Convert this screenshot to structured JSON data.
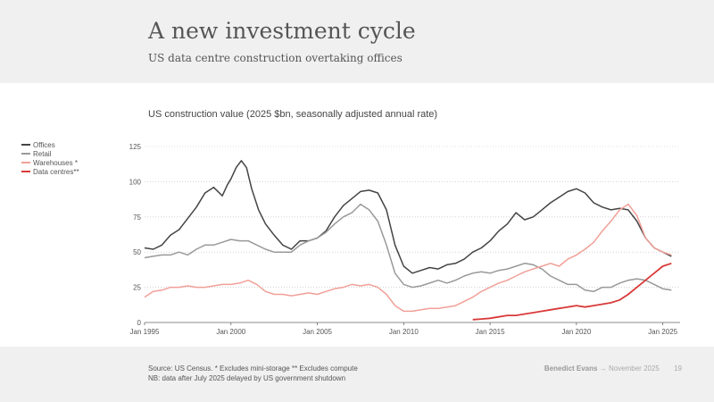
{
  "header": {
    "title": "A new investment cycle",
    "subtitle": "US data centre construction overtaking offices"
  },
  "footer": {
    "source_line1": "Source: US Census. * Excludes mini-storage ** Excludes compute",
    "source_line2": "NB: data after July 2025 delayed by US government shutdown",
    "author": "Benedict Evans",
    "arrow": "→",
    "date": "November 2025",
    "page": "19"
  },
  "colors": {
    "offices": "#444444",
    "retail": "#999999",
    "warehouses": "#f0a098",
    "datacentres": "#d93a3a"
  },
  "chart_data": {
    "type": "line",
    "title": "US construction value (2025 $bn, seasonally adjusted annual rate)",
    "xlabel": "",
    "ylabel": "",
    "xlim": [
      1995,
      2026
    ],
    "ylim": [
      0,
      125
    ],
    "yticks": [
      0,
      25,
      50,
      75,
      100,
      125
    ],
    "xticks": [
      {
        "value": 1995,
        "label": "Jan 1995"
      },
      {
        "value": 2000,
        "label": "Jan 2000"
      },
      {
        "value": 2005,
        "label": "Jan 2005"
      },
      {
        "value": 2010,
        "label": "Jan 2010"
      },
      {
        "value": 2015,
        "label": "Jan 2015"
      },
      {
        "value": 2020,
        "label": "Jan 2020"
      },
      {
        "value": 2025,
        "label": "Jan 2025"
      }
    ],
    "grid": "horizontal-dotted",
    "legend_position": "left",
    "series": [
      {
        "name": "Offices",
        "color_key": "offices",
        "points": [
          [
            1995,
            53
          ],
          [
            1995.5,
            52
          ],
          [
            1996,
            55
          ],
          [
            1996.5,
            62
          ],
          [
            1997,
            66
          ],
          [
            1997.5,
            74
          ],
          [
            1998,
            82
          ],
          [
            1998.5,
            92
          ],
          [
            1999,
            96
          ],
          [
            1999.5,
            90
          ],
          [
            1999.8,
            98
          ],
          [
            2000,
            102
          ],
          [
            2000.3,
            110
          ],
          [
            2000.6,
            115
          ],
          [
            2000.9,
            110
          ],
          [
            2001.2,
            95
          ],
          [
            2001.6,
            80
          ],
          [
            2002,
            70
          ],
          [
            2002.5,
            62
          ],
          [
            2003,
            55
          ],
          [
            2003.5,
            52
          ],
          [
            2004,
            58
          ],
          [
            2004.5,
            58
          ],
          [
            2005,
            60
          ],
          [
            2005.5,
            65
          ],
          [
            2006,
            75
          ],
          [
            2006.5,
            83
          ],
          [
            2007,
            88
          ],
          [
            2007.5,
            93
          ],
          [
            2008,
            94
          ],
          [
            2008.5,
            92
          ],
          [
            2009,
            80
          ],
          [
            2009.5,
            55
          ],
          [
            2010,
            40
          ],
          [
            2010.5,
            35
          ],
          [
            2011,
            37
          ],
          [
            2011.5,
            39
          ],
          [
            2012,
            38
          ],
          [
            2012.5,
            41
          ],
          [
            2013,
            42
          ],
          [
            2013.5,
            45
          ],
          [
            2014,
            50
          ],
          [
            2014.5,
            53
          ],
          [
            2015,
            58
          ],
          [
            2015.5,
            65
          ],
          [
            2016,
            70
          ],
          [
            2016.5,
            78
          ],
          [
            2017,
            73
          ],
          [
            2017.5,
            75
          ],
          [
            2018,
            80
          ],
          [
            2018.5,
            85
          ],
          [
            2019,
            89
          ],
          [
            2019.5,
            93
          ],
          [
            2020,
            95
          ],
          [
            2020.5,
            92
          ],
          [
            2021,
            85
          ],
          [
            2021.5,
            82
          ],
          [
            2022,
            80
          ],
          [
            2022.5,
            81
          ],
          [
            2023,
            80
          ],
          [
            2023.5,
            72
          ],
          [
            2024,
            60
          ],
          [
            2024.5,
            53
          ],
          [
            2025,
            50
          ],
          [
            2025.5,
            47
          ]
        ]
      },
      {
        "name": "Retail",
        "color_key": "retail",
        "points": [
          [
            1995,
            46
          ],
          [
            1995.5,
            47
          ],
          [
            1996,
            48
          ],
          [
            1996.5,
            48
          ],
          [
            1997,
            50
          ],
          [
            1997.5,
            48
          ],
          [
            1998,
            52
          ],
          [
            1998.5,
            55
          ],
          [
            1999,
            55
          ],
          [
            1999.5,
            57
          ],
          [
            2000,
            59
          ],
          [
            2000.5,
            58
          ],
          [
            2001,
            58
          ],
          [
            2001.5,
            55
          ],
          [
            2002,
            52
          ],
          [
            2002.5,
            50
          ],
          [
            2003,
            50
          ],
          [
            2003.5,
            50
          ],
          [
            2004,
            55
          ],
          [
            2004.5,
            58
          ],
          [
            2005,
            60
          ],
          [
            2005.5,
            64
          ],
          [
            2006,
            70
          ],
          [
            2006.5,
            75
          ],
          [
            2007,
            78
          ],
          [
            2007.5,
            84
          ],
          [
            2008,
            80
          ],
          [
            2008.5,
            72
          ],
          [
            2009,
            55
          ],
          [
            2009.5,
            35
          ],
          [
            2010,
            27
          ],
          [
            2010.5,
            25
          ],
          [
            2011,
            26
          ],
          [
            2011.5,
            28
          ],
          [
            2012,
            30
          ],
          [
            2012.5,
            28
          ],
          [
            2013,
            30
          ],
          [
            2013.5,
            33
          ],
          [
            2014,
            35
          ],
          [
            2014.5,
            36
          ],
          [
            2015,
            35
          ],
          [
            2015.5,
            37
          ],
          [
            2016,
            38
          ],
          [
            2016.5,
            40
          ],
          [
            2017,
            42
          ],
          [
            2017.5,
            41
          ],
          [
            2018,
            38
          ],
          [
            2018.5,
            33
          ],
          [
            2019,
            30
          ],
          [
            2019.5,
            27
          ],
          [
            2020,
            27
          ],
          [
            2020.5,
            23
          ],
          [
            2021,
            22
          ],
          [
            2021.5,
            25
          ],
          [
            2022,
            25
          ],
          [
            2022.5,
            28
          ],
          [
            2023,
            30
          ],
          [
            2023.5,
            31
          ],
          [
            2024,
            30
          ],
          [
            2024.5,
            27
          ],
          [
            2025,
            24
          ],
          [
            2025.5,
            23
          ]
        ]
      },
      {
        "name": "Warehouses *",
        "color_key": "warehouses",
        "points": [
          [
            1995,
            18
          ],
          [
            1995.5,
            22
          ],
          [
            1996,
            23
          ],
          [
            1996.5,
            25
          ],
          [
            1997,
            25
          ],
          [
            1997.5,
            26
          ],
          [
            1998,
            25
          ],
          [
            1998.5,
            25
          ],
          [
            1999,
            26
          ],
          [
            1999.5,
            27
          ],
          [
            2000,
            27
          ],
          [
            2000.5,
            28
          ],
          [
            2001,
            30
          ],
          [
            2001.5,
            27
          ],
          [
            2002,
            22
          ],
          [
            2002.5,
            20
          ],
          [
            2003,
            20
          ],
          [
            2003.5,
            19
          ],
          [
            2004,
            20
          ],
          [
            2004.5,
            21
          ],
          [
            2005,
            20
          ],
          [
            2005.5,
            22
          ],
          [
            2006,
            24
          ],
          [
            2006.5,
            25
          ],
          [
            2007,
            27
          ],
          [
            2007.5,
            26
          ],
          [
            2008,
            27
          ],
          [
            2008.5,
            25
          ],
          [
            2009,
            20
          ],
          [
            2009.5,
            12
          ],
          [
            2010,
            8
          ],
          [
            2010.5,
            8
          ],
          [
            2011,
            9
          ],
          [
            2011.5,
            10
          ],
          [
            2012,
            10
          ],
          [
            2012.5,
            11
          ],
          [
            2013,
            12
          ],
          [
            2013.5,
            15
          ],
          [
            2014,
            18
          ],
          [
            2014.5,
            22
          ],
          [
            2015,
            25
          ],
          [
            2015.5,
            28
          ],
          [
            2016,
            30
          ],
          [
            2016.5,
            33
          ],
          [
            2017,
            36
          ],
          [
            2017.5,
            38
          ],
          [
            2018,
            40
          ],
          [
            2018.5,
            42
          ],
          [
            2019,
            40
          ],
          [
            2019.5,
            45
          ],
          [
            2020,
            48
          ],
          [
            2020.5,
            52
          ],
          [
            2021,
            57
          ],
          [
            2021.5,
            65
          ],
          [
            2022,
            72
          ],
          [
            2022.5,
            80
          ],
          [
            2023,
            84
          ],
          [
            2023.5,
            76
          ],
          [
            2024,
            60
          ],
          [
            2024.5,
            53
          ],
          [
            2025,
            50
          ],
          [
            2025.5,
            48
          ]
        ]
      },
      {
        "name": "Data centres**",
        "color_key": "datacentres",
        "points": [
          [
            2014,
            2
          ],
          [
            2014.5,
            2.5
          ],
          [
            2015,
            3
          ],
          [
            2015.5,
            4
          ],
          [
            2016,
            5
          ],
          [
            2016.5,
            5
          ],
          [
            2017,
            6
          ],
          [
            2017.5,
            7
          ],
          [
            2018,
            8
          ],
          [
            2018.5,
            9
          ],
          [
            2019,
            10
          ],
          [
            2019.5,
            11
          ],
          [
            2020,
            12
          ],
          [
            2020.5,
            11
          ],
          [
            2021,
            12
          ],
          [
            2021.5,
            13
          ],
          [
            2022,
            14
          ],
          [
            2022.5,
            16
          ],
          [
            2023,
            20
          ],
          [
            2023.5,
            25
          ],
          [
            2024,
            30
          ],
          [
            2024.5,
            35
          ],
          [
            2025,
            40
          ],
          [
            2025.5,
            42
          ]
        ]
      }
    ]
  }
}
